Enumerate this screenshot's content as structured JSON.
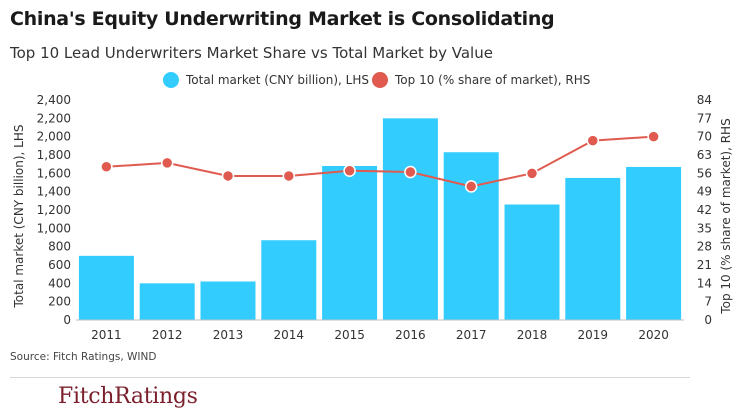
{
  "title": "China's Equity Underwriting Market is Consolidating",
  "subtitle": "Top 10 Lead Underwriters Market Share vs Total Market by Value",
  "source": "Source: Fitch Ratings, WIND",
  "logo": "FitchRatings",
  "colors": {
    "bar": "#33ccff",
    "line": "#e05a4f"
  },
  "chart_data": {
    "type": "bar+line",
    "categories": [
      "2011",
      "2012",
      "2013",
      "2014",
      "2015",
      "2016",
      "2017",
      "2018",
      "2019",
      "2020"
    ],
    "series": [
      {
        "name": "Total market (CNY billion), LHS",
        "type": "bar",
        "axis": "left",
        "values": [
          700,
          400,
          420,
          870,
          1680,
          2200,
          1830,
          1260,
          1550,
          1670
        ]
      },
      {
        "name": "Top 10 (% share of market), RHS",
        "type": "line",
        "axis": "right",
        "values": [
          58.5,
          60,
          55,
          55,
          57,
          56.5,
          51,
          56,
          68.5,
          70
        ]
      }
    ],
    "ylabel_left": "Total market (CNY billion), LHS",
    "ylabel_right": "Top 10 (% share of market), RHS",
    "ylim_left": [
      0,
      2400
    ],
    "ylim_right": [
      0,
      84
    ],
    "yticks_left": [
      "0",
      "200",
      "400",
      "600",
      "800",
      "1,000",
      "1,200",
      "1,400",
      "1,600",
      "1,800",
      "2,000",
      "2,200",
      "2,400"
    ],
    "yticks_right": [
      "0",
      "7",
      "14",
      "21",
      "28",
      "35",
      "42",
      "49",
      "56",
      "63",
      "70",
      "77",
      "84"
    ],
    "yticks_left_values": [
      0,
      200,
      400,
      600,
      800,
      1000,
      1200,
      1400,
      1600,
      1800,
      2000,
      2200,
      2400
    ],
    "yticks_right_values": [
      0,
      7,
      14,
      21,
      28,
      35,
      42,
      49,
      56,
      63,
      70,
      77,
      84
    ],
    "legend": [
      "Total market (CNY billion), LHS",
      "Top 10 (% share of market), RHS"
    ],
    "grid": false
  }
}
